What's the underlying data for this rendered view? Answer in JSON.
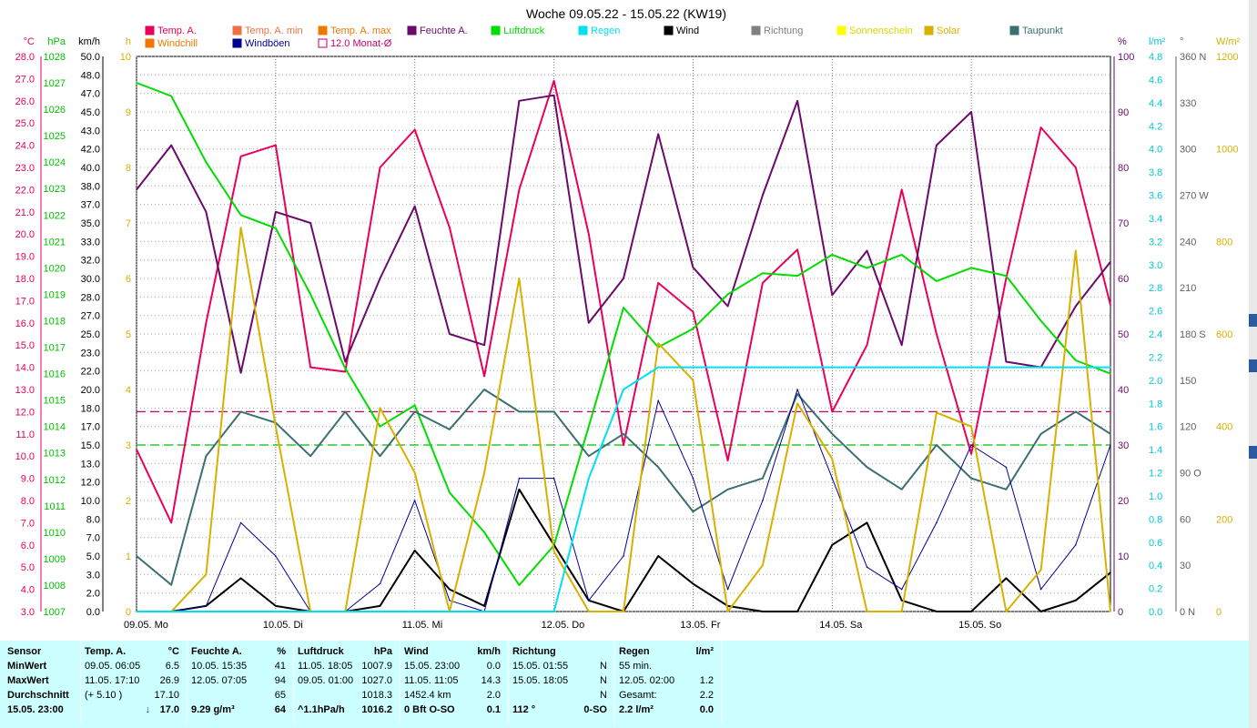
{
  "title": "Woche 09.05.22 - 15.05.22 (KW19)",
  "legend": [
    {
      "label": "Temp. A.",
      "color": "#e8005a"
    },
    {
      "label": "Windchill",
      "color": "#f07800"
    },
    {
      "label": "Temp. A. min",
      "color": "#f07040"
    },
    {
      "label": "Windböen",
      "color": "#000090"
    },
    {
      "label": "Temp. A. max",
      "color": "#f07800"
    },
    {
      "label": "12.0 Monat-Ø",
      "color": "#c8006e"
    },
    {
      "label": "Feuchte A.",
      "color": "#6a0a6a"
    },
    {
      "label": "Luftdruck",
      "color": "#00dd00"
    },
    {
      "label": "Regen",
      "color": "#00e0f0"
    },
    {
      "label": "Wind",
      "color": "#000000"
    },
    {
      "label": "Richtung",
      "color": "#808080"
    },
    {
      "label": "Sonnenschein",
      "color": "#ffff00"
    },
    {
      "label": "Solar",
      "color": "#d8b000"
    },
    {
      "label": "Taupunkt",
      "color": "#3a7070"
    }
  ],
  "axes": {
    "temp": {
      "unit": "°C",
      "color": "#e8005a",
      "labels": [
        "28.0",
        "27.0",
        "26.0",
        "25.0",
        "24.0",
        "23.0",
        "22.0",
        "21.0",
        "20.0",
        "19.0",
        "18.0",
        "17.0",
        "16.0",
        "15.0",
        "14.0",
        "13.0",
        "12.0",
        "11.0",
        "10.0",
        "9.0",
        "8.0",
        "7.0",
        "6.0",
        "5.0",
        "4.0",
        "3.0"
      ]
    },
    "press": {
      "unit": "hPa",
      "color": "#00c000",
      "labels": [
        "1028",
        "1027",
        "1026",
        "1025",
        "1024",
        "1023",
        "1022",
        "1021",
        "1020",
        "1019",
        "1018",
        "1017",
        "1016",
        "1015",
        "1014",
        "1013",
        "1012",
        "1011",
        "1010",
        "1009",
        "1008",
        "1007"
      ]
    },
    "wind": {
      "unit": "km/h",
      "color": "#000000",
      "labels": [
        "50.0",
        "48.0",
        "47.0",
        "45.0",
        "43.0",
        "42.0",
        "40.0",
        "38.0",
        "37.0",
        "35.0",
        "33.0",
        "32.0",
        "30.0",
        "28.0",
        "27.0",
        "25.0",
        "23.0",
        "22.0",
        "20.0",
        "18.0",
        "17.0",
        "15.0",
        "13.0",
        "12.0",
        "10.0",
        "8.0",
        "7.0",
        "5.0",
        "3.0",
        "2.0",
        "0.0"
      ]
    },
    "sun": {
      "unit": "h",
      "color": "#d8b000",
      "labels": [
        "10",
        "9",
        "8",
        "7",
        "6",
        "5",
        "4",
        "3",
        "2",
        "1",
        "0"
      ]
    },
    "hum": {
      "unit": "%",
      "color": "#6a0a6a",
      "labels": [
        "100",
        "90",
        "80",
        "70",
        "60",
        "50",
        "40",
        "30",
        "20",
        "10",
        "0"
      ]
    },
    "rain": {
      "unit": "l/m²",
      "color": "#00c8d8",
      "labels": [
        "4.8",
        "4.6",
        "4.4",
        "4.2",
        "4.0",
        "3.8",
        "3.6",
        "3.4",
        "3.2",
        "3.0",
        "2.8",
        "2.6",
        "2.4",
        "2.2",
        "2.0",
        "1.8",
        "1.6",
        "1.4",
        "1.2",
        "1.0",
        "0.8",
        "0.6",
        "0.4",
        "0.2",
        "0.0"
      ]
    },
    "dir": {
      "unit": "°",
      "color": "#606060",
      "labels": [
        "360 N",
        "330",
        "300",
        "270 W",
        "240",
        "210",
        "180 S",
        "150",
        "120",
        "90 O",
        "60",
        "30",
        "0 N"
      ]
    },
    "solar": {
      "unit": "W/m²",
      "color": "#d8b000",
      "labels": [
        "1200",
        "1000",
        "800",
        "600",
        "400",
        "200",
        "0"
      ]
    }
  },
  "days": [
    "09.05. Mo",
    "10.05. Di",
    "11.05. Mi",
    "12.05. Do",
    "13.05. Fr",
    "14.05. Sa",
    "15.05. So"
  ],
  "chart_data": {
    "type": "line",
    "title": "Woche 09.05.22 - 15.05.22 (KW19)",
    "x_hours": [
      0,
      6,
      12,
      18,
      24,
      30,
      36,
      42,
      48,
      54,
      60,
      66,
      72,
      78,
      84,
      90,
      96,
      102,
      108,
      114,
      120,
      126,
      132,
      138,
      144,
      150,
      156,
      162,
      168
    ],
    "series": [
      {
        "name": "Temp. A.",
        "axis": "temp",
        "color": "#e8005a",
        "values": [
          10.3,
          7.0,
          16.0,
          23.5,
          24.0,
          14.0,
          13.8,
          23.0,
          24.7,
          20.3,
          13.6,
          22.0,
          26.9,
          20.0,
          10.5,
          17.8,
          16.5,
          9.8,
          17.8,
          19.3,
          12.0,
          15.0,
          22.0,
          15.5,
          10.1,
          18.0,
          24.8,
          23.0,
          16.8
        ]
      },
      {
        "name": "Feuchte A.",
        "axis": "hum",
        "color": "#6a0a6a",
        "values": [
          76,
          84,
          72,
          43,
          72,
          70,
          45,
          60,
          73,
          50,
          48,
          92,
          93,
          52,
          60,
          86,
          62,
          55,
          75,
          92,
          57,
          65,
          48,
          84,
          90,
          45,
          44,
          55,
          63
        ]
      },
      {
        "name": "Luftdruck",
        "axis": "press",
        "color": "#00dd00",
        "values": [
          1027.0,
          1026.5,
          1024.0,
          1022.0,
          1021.5,
          1019.0,
          1016.2,
          1014.0,
          1014.8,
          1011.5,
          1010.0,
          1008.0,
          1009.5,
          1014.0,
          1018.5,
          1017.0,
          1017.7,
          1019.0,
          1019.8,
          1019.7,
          1020.5,
          1020.0,
          1020.5,
          1019.5,
          1020.0,
          1019.7,
          1018.0,
          1016.5,
          1016.0
        ]
      },
      {
        "name": "Taupunkt",
        "axis": "temp",
        "color": "#3a7070",
        "values": [
          5.5,
          4.2,
          10.0,
          12.0,
          11.5,
          10.0,
          12.0,
          10.0,
          12.0,
          11.2,
          13.0,
          12.0,
          12.0,
          10.0,
          11.0,
          9.5,
          7.5,
          8.5,
          9.0,
          12.8,
          11.0,
          9.5,
          8.5,
          10.5,
          9.0,
          8.5,
          11.0,
          12.0,
          11.0
        ]
      },
      {
        "name": "Wind",
        "axis": "wind",
        "color": "#000000",
        "values": [
          0,
          0,
          0.5,
          3.0,
          0.5,
          0,
          0,
          0.5,
          5.5,
          2.0,
          0.5,
          11.0,
          6.0,
          1.0,
          0,
          5.0,
          2.5,
          0.5,
          0,
          0,
          6.0,
          8.0,
          1.0,
          0,
          0,
          3.0,
          0,
          1.0,
          3.5
        ]
      },
      {
        "name": "Windböen",
        "axis": "wind",
        "color": "#000090",
        "values": [
          0,
          0,
          0.5,
          8.0,
          5.0,
          0,
          0,
          2.5,
          10.0,
          1.0,
          0,
          12.0,
          12.0,
          1.0,
          5.0,
          19.0,
          12.0,
          2.0,
          10.0,
          20.0,
          12.0,
          4.0,
          2.0,
          8.0,
          15.0,
          13.0,
          2.0,
          6.0,
          15.0
        ]
      },
      {
        "name": "Solar",
        "axis": "solar",
        "color": "#d8b000",
        "values": [
          0,
          0,
          80,
          830,
          400,
          0,
          0,
          440,
          300,
          0,
          300,
          720,
          130,
          0,
          0,
          580,
          500,
          0,
          100,
          450,
          330,
          0,
          0,
          430,
          400,
          0,
          90,
          780,
          0
        ]
      },
      {
        "name": "Regen",
        "axis": "rain",
        "color": "#00e0f0",
        "values": [
          0,
          0,
          0,
          0,
          0,
          0,
          0,
          0,
          0,
          0,
          0,
          0,
          0,
          1.2,
          2.0,
          2.2,
          2.2,
          2.2,
          2.2,
          2.2,
          2.2,
          2.2,
          2.2,
          2.2,
          2.2,
          2.2,
          2.2,
          2.2,
          2.2
        ]
      }
    ],
    "reference_lines": [
      {
        "name": "12.0 Monat-Ø",
        "axis": "temp",
        "value": 12.0,
        "color": "#c8006e"
      },
      {
        "axis": "press",
        "value": 1013.3,
        "color": "#00c000"
      }
    ],
    "ylim_temp": [
      3,
      28
    ],
    "ylim_hum": [
      0,
      100
    ],
    "ylim_press": [
      1007,
      1028
    ]
  },
  "stats": {
    "sensor": {
      "head": "Sensor",
      "rows": [
        "MinWert",
        "MaxWert",
        "Durchschnitt",
        "15.05. 23:00"
      ]
    },
    "temp": {
      "head": "Temp. A.",
      "unit": "°C",
      "rows": [
        [
          "09.05.  06:05",
          "6.5"
        ],
        [
          "11.05.  17:10",
          "26.9"
        ],
        [
          "(+ 5.10 )",
          "17.10"
        ],
        [
          "↓",
          "17.0"
        ]
      ]
    },
    "hum": {
      "head": "Feuchte A.",
      "unit": "%",
      "rows": [
        [
          "10.05.  15:35",
          "41"
        ],
        [
          "12.05.  07:05",
          "94"
        ],
        [
          "",
          "65"
        ],
        [
          "9.29 g/m³",
          "64"
        ]
      ]
    },
    "press": {
      "head": "Luftdruck",
      "unit": "hPa",
      "rows": [
        [
          "11.05.  18:05",
          "1007.9"
        ],
        [
          "09.05.  01:00",
          "1027.0"
        ],
        [
          "",
          "1018.3"
        ],
        [
          "^1.1hPa/h",
          "1016.2"
        ]
      ]
    },
    "wind": {
      "head": "Wind",
      "unit": "km/h",
      "rows": [
        [
          "15.05.  23:00",
          "0.0"
        ],
        [
          "11.05.  11:05",
          "14.3"
        ],
        [
          "1452.4 km",
          "2.0"
        ],
        [
          "0 Bft O-SO",
          "0.1"
        ]
      ]
    },
    "dir": {
      "head": "Richtung",
      "rows": [
        [
          "15.05.  01:55",
          "N"
        ],
        [
          "15.05.  18:05",
          "N"
        ],
        [
          "",
          "N"
        ],
        [
          "112 °",
          "0-SO"
        ]
      ]
    },
    "rain": {
      "head": "Regen",
      "unit": "l/m²",
      "rows": [
        [
          "55 min.",
          ""
        ],
        [
          "12.05.  02:00",
          "1.2"
        ],
        [
          "Gesamt:",
          "2.2"
        ],
        [
          "2.2 l/m²",
          "0.0"
        ]
      ]
    }
  }
}
